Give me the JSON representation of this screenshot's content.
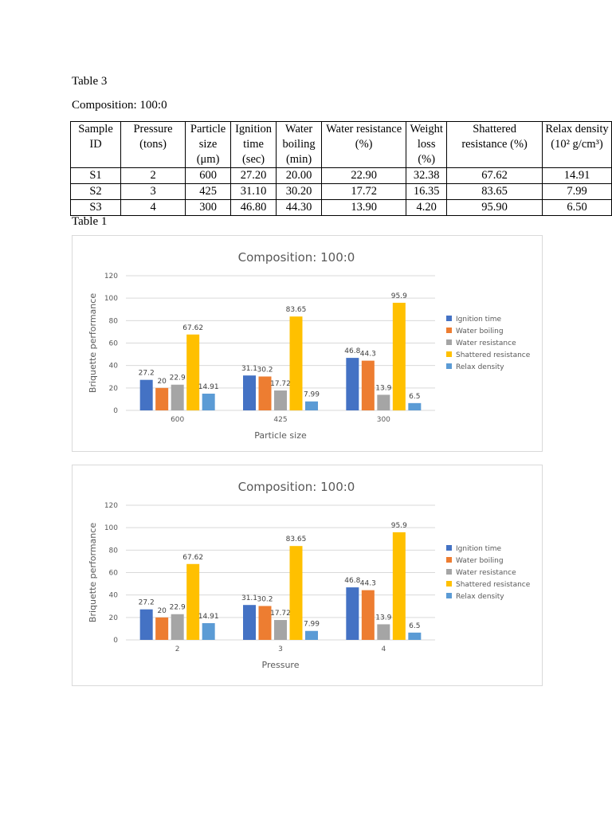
{
  "doc": {
    "table_label": "Table 3",
    "composition_label": "Composition: 100:0",
    "caption_below": "Table 1"
  },
  "table": {
    "headers": [
      "Sample ID",
      "Pressure (tons)",
      "Particle size (μm)",
      "Ignition time (sec)",
      "Water boiling (min)",
      "Water resistance (%)",
      "Weight loss (%)",
      "Shattered resistance (%)",
      "Relax density (10² g/cm³)"
    ],
    "rows": [
      [
        "S1",
        "2",
        "600",
        "27.20",
        "20.00",
        "22.90",
        "32.38",
        "67.62",
        "14.91"
      ],
      [
        "S2",
        "3",
        "425",
        "31.10",
        "30.20",
        "17.72",
        "16.35",
        "83.65",
        "7.99"
      ],
      [
        "S3",
        "4",
        "300",
        "46.80",
        "44.30",
        "13.90",
        "4.20",
        "95.90",
        "6.50"
      ]
    ]
  },
  "chart_data": [
    {
      "type": "bar",
      "title": "Composition: 100:0",
      "xlabel": "Particle size",
      "ylabel": "Briquette performance",
      "categories": [
        "600",
        "425",
        "300"
      ],
      "ylim": [
        0,
        120
      ],
      "yticks": [
        0,
        20,
        40,
        60,
        80,
        100,
        120
      ],
      "grid": true,
      "legend": "right",
      "series": [
        {
          "name": "Ignition time",
          "color": "#4472c4",
          "values": [
            27.2,
            31.1,
            46.8
          ]
        },
        {
          "name": "Water boiling",
          "color": "#ed7d31",
          "values": [
            20,
            30.2,
            44.3
          ]
        },
        {
          "name": "Water resistance",
          "color": "#a5a5a5",
          "values": [
            22.9,
            17.72,
            13.9
          ]
        },
        {
          "name": "Shattered resistance",
          "color": "#ffc000",
          "values": [
            67.62,
            83.65,
            95.9
          ]
        },
        {
          "name": "Relax density",
          "color": "#5b9bd5",
          "values": [
            14.91,
            7.99,
            6.5
          ]
        }
      ]
    },
    {
      "type": "bar",
      "title": "Composition: 100:0",
      "xlabel": "Pressure",
      "ylabel": "Briquette performance",
      "categories": [
        "2",
        "3",
        "4"
      ],
      "ylim": [
        0,
        120
      ],
      "yticks": [
        0,
        20,
        40,
        60,
        80,
        100,
        120
      ],
      "grid": true,
      "legend": "right",
      "series": [
        {
          "name": "Ignition time",
          "color": "#4472c4",
          "values": [
            27.2,
            31.1,
            46.8
          ]
        },
        {
          "name": "Water boiling",
          "color": "#ed7d31",
          "values": [
            20,
            30.2,
            44.3
          ]
        },
        {
          "name": "Water resistance",
          "color": "#a5a5a5",
          "values": [
            22.9,
            17.72,
            13.9
          ]
        },
        {
          "name": "Shattered resistance",
          "color": "#ffc000",
          "values": [
            67.62,
            83.65,
            95.9
          ]
        },
        {
          "name": "Relax density",
          "color": "#5b9bd5",
          "values": [
            14.91,
            7.99,
            6.5
          ]
        }
      ]
    }
  ]
}
